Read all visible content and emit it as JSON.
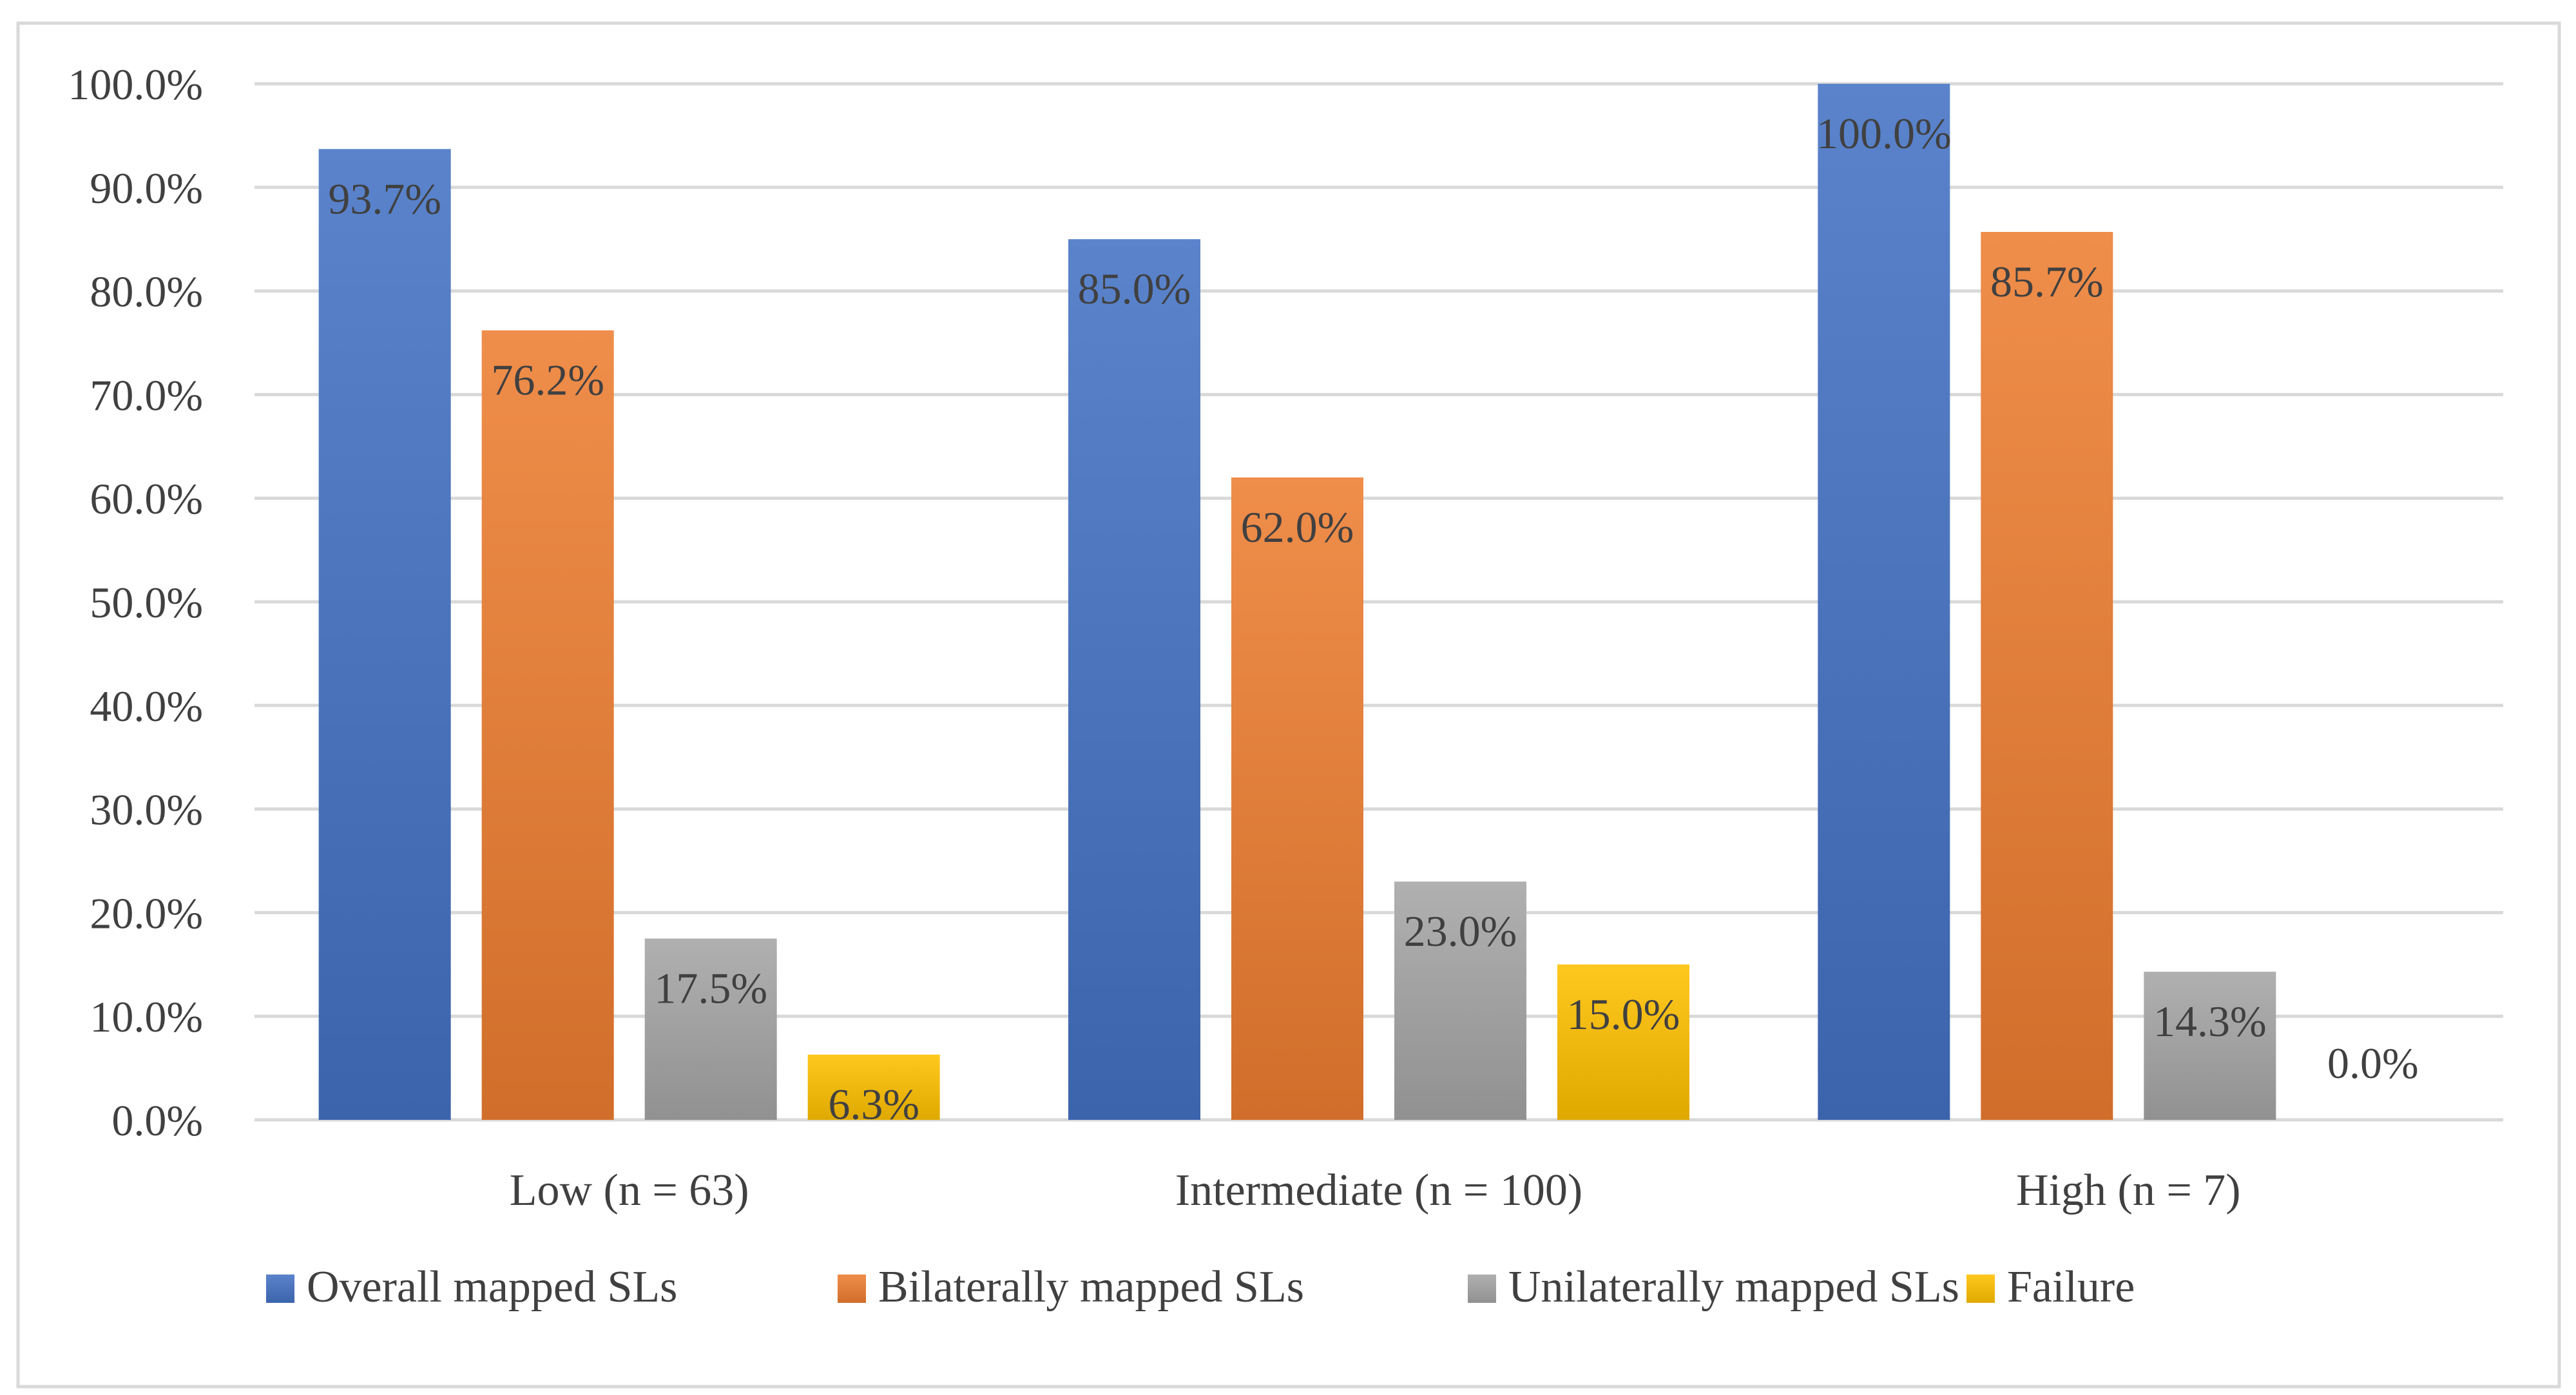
{
  "chart_data": {
    "type": "bar",
    "title": "",
    "xlabel": "",
    "ylabel": "",
    "ylim": [
      0,
      100
    ],
    "y_ticks": [
      "0.0%",
      "10.0%",
      "20.0%",
      "30.0%",
      "40.0%",
      "50.0%",
      "60.0%",
      "70.0%",
      "80.0%",
      "90.0%",
      "100.0%"
    ],
    "grid": true,
    "legend_position": "bottom",
    "categories": [
      "Low (n = 63)",
      "Intermediate (n = 100)",
      "High (n = 7)"
    ],
    "series": [
      {
        "name": "Overall mapped SLs",
        "values": [
          93.7,
          85.0,
          100.0
        ],
        "labels": [
          "93.7%",
          "85.0%",
          "100.0%"
        ],
        "color": "#4472C4"
      },
      {
        "name": "Bilaterally mapped SLs",
        "values": [
          76.2,
          62.0,
          85.7
        ],
        "labels": [
          "76.2%",
          "62.0%",
          "85.7%"
        ],
        "color": "#ED7D31"
      },
      {
        "name": "Unilaterally mapped SLs",
        "values": [
          17.5,
          23.0,
          14.3
        ],
        "labels": [
          "17.5%",
          "23.0%",
          "14.3%"
        ],
        "color": "#A5A5A5"
      },
      {
        "name": "Failure",
        "values": [
          6.3,
          15.0,
          0.0
        ],
        "labels": [
          "6.3%",
          "15.0%",
          "0.0%"
        ],
        "color": "#FFC000"
      }
    ]
  }
}
